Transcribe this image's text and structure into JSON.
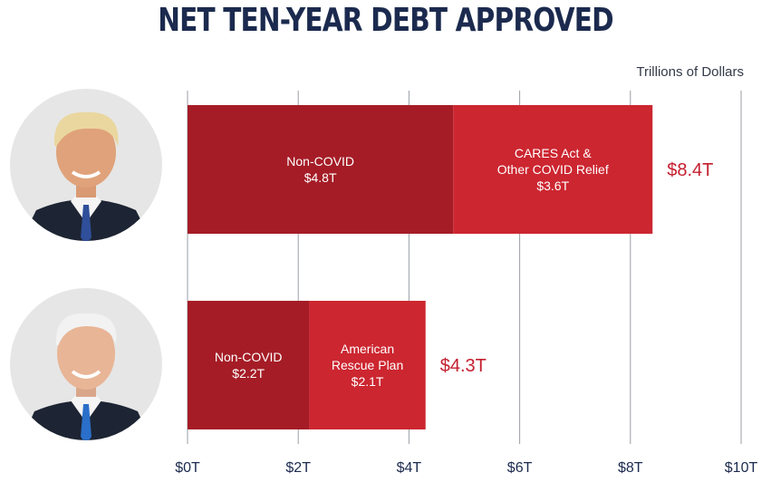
{
  "colors": {
    "title": "#1b2a4e",
    "non_covid": "#a51c26",
    "covid": "#cc2630",
    "total_label": "#c41e2e",
    "grid": "#9a9ea6",
    "photo_bg": "#e6e6e6"
  },
  "icons": {
    "photo_1": "person-portrait-icon",
    "photo_2": "person-portrait-icon"
  },
  "chart_data": {
    "type": "bar",
    "orientation": "horizontal",
    "stacked": true,
    "title": "NET TEN-YEAR DEBT APPROVED",
    "unit_label": "Trillions of Dollars",
    "xlim": [
      0,
      10
    ],
    "x_ticks": [
      0,
      2,
      4,
      6,
      8,
      10
    ],
    "x_tick_labels": [
      "$0T",
      "$2T",
      "$4T",
      "$6T",
      "$8T",
      "$10T"
    ],
    "grid": true,
    "bars": [
      {
        "total": 8.4,
        "total_label": "$8.4T",
        "segments": [
          {
            "value": 4.8,
            "label_lines": [
              "Non-COVID",
              "$4.8T"
            ],
            "color": "#a51c26"
          },
          {
            "value": 3.6,
            "label_lines": [
              "CARES Act &",
              "Other COVID Relief",
              "$3.6T"
            ],
            "color": "#cc2630"
          }
        ]
      },
      {
        "total": 4.3,
        "total_label": "$4.3T",
        "segments": [
          {
            "value": 2.2,
            "label_lines": [
              "Non-COVID",
              "$2.2T"
            ],
            "color": "#a51c26"
          },
          {
            "value": 2.1,
            "label_lines": [
              "American",
              "Rescue Plan",
              "$2.1T"
            ],
            "color": "#cc2630"
          }
        ]
      }
    ]
  }
}
